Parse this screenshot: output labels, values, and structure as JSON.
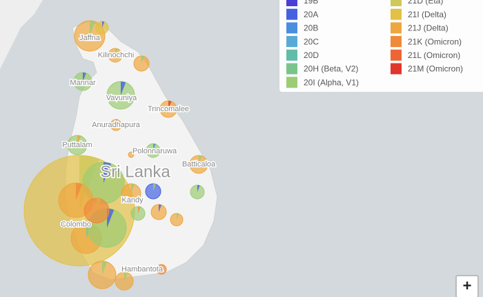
{
  "map": {
    "places": [
      "Jaffna",
      "Kilinochchi",
      "Mannar",
      "Vavuniya",
      "Trincomalee",
      "Anuradhapura",
      "Puttalam",
      "Polonnaruwa",
      "Batticaloa",
      "Sri Lanka",
      "Kandy",
      "Colombo",
      "Hambantota"
    ]
  },
  "legend": {
    "left": [
      {
        "label": "19B",
        "color": "#4a3fd8"
      },
      {
        "label": "20A",
        "color": "#4462e0"
      },
      {
        "label": "20B",
        "color": "#4a8ee0"
      },
      {
        "label": "20C",
        "color": "#58aad4"
      },
      {
        "label": "20D",
        "color": "#62bcaa"
      },
      {
        "label": "20H (Beta, V2)",
        "color": "#7ac48c"
      },
      {
        "label": "20I (Alpha, V1)",
        "color": "#9ccc74"
      }
    ],
    "right": [
      {
        "label": "21D (Eta)",
        "color": "#cfc85a"
      },
      {
        "label": "21I (Delta)",
        "color": "#e3c046"
      },
      {
        "label": "21J (Delta)",
        "color": "#eea63e"
      },
      {
        "label": "21K (Omicron)",
        "color": "#f08a3a"
      },
      {
        "label": "21L (Omicron)",
        "color": "#ee6534"
      },
      {
        "label": "21M (Omicron)",
        "color": "#e0362c"
      }
    ]
  },
  "controls": {
    "zoom_in": "+"
  }
}
